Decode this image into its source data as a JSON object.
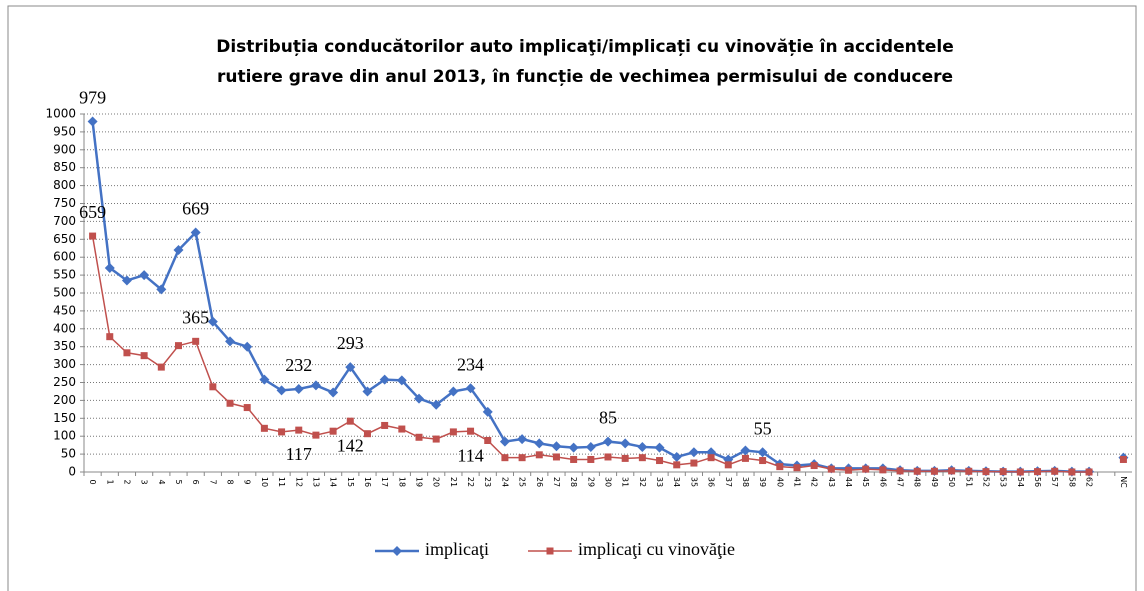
{
  "chart_data": {
    "type": "line",
    "title": [
      "Distribuția conducătorilor auto implicaţi/implicați cu vinovăție în accidentele",
      "rutiere grave din anul 2013, în funcție de vechimea permisului de conducere"
    ],
    "categories": [
      "0",
      "1",
      "2",
      "3",
      "4",
      "5",
      "6",
      "7",
      "8",
      "9",
      "10",
      "11",
      "12",
      "13",
      "14",
      "15",
      "16",
      "17",
      "18",
      "19",
      "20",
      "21",
      "22",
      "23",
      "24",
      "25",
      "26",
      "27",
      "28",
      "29",
      "30",
      "31",
      "32",
      "33",
      "34",
      "35",
      "36",
      "37",
      "38",
      "39",
      "40",
      "41",
      "42",
      "43",
      "44",
      "45",
      "46",
      "47",
      "48",
      "49",
      "50",
      "51",
      "52",
      "53",
      "54",
      "56",
      "57",
      "58",
      "62",
      null,
      "NC"
    ],
    "series": [
      {
        "name": "implicaţi",
        "color": "#4472c4",
        "marker": "diamond",
        "values": [
          979,
          570,
          535,
          550,
          510,
          620,
          669,
          420,
          365,
          350,
          258,
          228,
          232,
          242,
          222,
          293,
          225,
          258,
          256,
          205,
          188,
          225,
          234,
          168,
          85,
          92,
          80,
          72,
          68,
          70,
          85,
          80,
          70,
          68,
          42,
          55,
          55,
          35,
          60,
          55,
          22,
          18,
          22,
          10,
          10,
          10,
          10,
          5,
          3,
          3,
          5,
          3,
          2,
          1,
          1,
          2,
          3,
          1,
          1,
          null,
          40
        ],
        "value_labels": [
          "979",
          null,
          null,
          null,
          null,
          null,
          "669",
          null,
          null,
          null,
          null,
          null,
          "232",
          null,
          null,
          "293",
          null,
          null,
          null,
          null,
          null,
          null,
          "234",
          null,
          null,
          null,
          null,
          null,
          null,
          null,
          "85",
          null,
          null,
          null,
          null,
          null,
          null,
          null,
          null,
          "55",
          null,
          null,
          null,
          null,
          null,
          null,
          null,
          null,
          null,
          null,
          null,
          null,
          null,
          null,
          null,
          null,
          null,
          null,
          null,
          null,
          null
        ]
      },
      {
        "name": "implicaţi cu vinovăţie",
        "color": "#c0504d",
        "marker": "square",
        "values": [
          659,
          378,
          333,
          325,
          293,
          353,
          365,
          238,
          192,
          180,
          122,
          112,
          117,
          103,
          114,
          142,
          107,
          130,
          120,
          97,
          92,
          112,
          114,
          88,
          40,
          40,
          48,
          42,
          35,
          35,
          42,
          38,
          40,
          32,
          20,
          25,
          40,
          20,
          38,
          32,
          15,
          12,
          18,
          8,
          5,
          8,
          6,
          3,
          2,
          2,
          3,
          2,
          1,
          1,
          0,
          1,
          2,
          0,
          0,
          null,
          35
        ],
        "value_labels": [
          "659",
          null,
          null,
          null,
          null,
          null,
          "365",
          null,
          null,
          null,
          null,
          null,
          "117",
          null,
          null,
          "142",
          null,
          null,
          null,
          null,
          null,
          null,
          "114",
          null,
          null,
          null,
          null,
          null,
          null,
          null,
          null,
          null,
          null,
          null,
          null,
          null,
          null,
          null,
          null,
          null,
          null,
          null,
          null,
          null,
          null,
          null,
          null,
          null,
          null,
          null,
          null,
          null,
          null,
          null,
          null,
          null,
          null,
          null,
          null,
          null,
          null
        ]
      }
    ],
    "ylim": [
      0,
      1000
    ],
    "yticks": [
      0,
      50,
      100,
      150,
      200,
      250,
      300,
      350,
      400,
      450,
      500,
      550,
      600,
      650,
      700,
      750,
      800,
      850,
      900,
      950,
      1000
    ],
    "grid": true,
    "legend": "bottom"
  }
}
